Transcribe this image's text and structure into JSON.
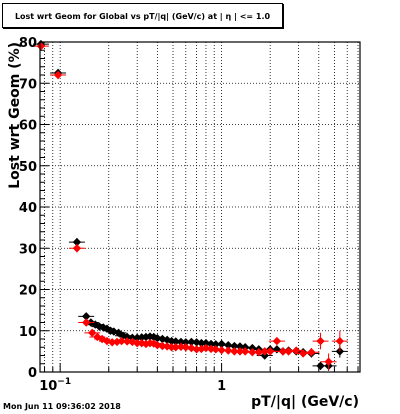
{
  "title": "Lost wrt Geom for Global vs pT/|q| (GeV/c) at | η | <= 1.0",
  "timestamp": "Mon Jun 11 09:36:02 2018",
  "colors": {
    "series_black": "#000000",
    "series_red": "#ff0000",
    "grid": "#000000"
  },
  "chart_data": {
    "type": "scatter",
    "xlabel": "pT/|q| (GeV/c)",
    "ylabel": "Lost wrt Geom (%)",
    "xscale": "log",
    "xlim": [
      0.075,
      7.2
    ],
    "ylim": [
      0,
      80
    ],
    "grid": true,
    "x_tick_labels": [
      {
        "value": 0.1,
        "base": "10",
        "exp": "−1"
      },
      {
        "value": 1,
        "base": "1",
        "exp": ""
      }
    ],
    "y_ticks": [
      0,
      10,
      20,
      30,
      40,
      50,
      60,
      70,
      80
    ],
    "series": [
      {
        "color": "#000000",
        "x": [
          0.076,
          0.097,
          0.127,
          0.145,
          0.155,
          0.165,
          0.175,
          0.185,
          0.195,
          0.205,
          0.215,
          0.23,
          0.245,
          0.26,
          0.28,
          0.3,
          0.32,
          0.34,
          0.36,
          0.38,
          0.4,
          0.43,
          0.46,
          0.49,
          0.52,
          0.56,
          0.6,
          0.65,
          0.7,
          0.75,
          0.8,
          0.86,
          0.92,
          1.0,
          1.1,
          1.2,
          1.3,
          1.4,
          1.55,
          1.7,
          1.85,
          2.0,
          2.2,
          2.4,
          2.6,
          2.9,
          3.2,
          3.6,
          4.1,
          4.6,
          5.4
        ],
        "y": [
          79.5,
          72.5,
          31.5,
          13.5,
          12.0,
          11.5,
          11.0,
          10.8,
          10.5,
          10.0,
          9.8,
          9.5,
          8.8,
          8.5,
          8.3,
          8.3,
          8.4,
          8.5,
          8.6,
          8.5,
          8.2,
          8.0,
          7.8,
          7.5,
          7.4,
          7.3,
          7.2,
          7.3,
          7.2,
          7.0,
          7.0,
          6.8,
          6.7,
          6.8,
          6.5,
          6.3,
          6.2,
          6.0,
          5.8,
          5.5,
          4.0,
          5.5,
          5.5,
          5.0,
          5.2,
          5.0,
          4.8,
          4.5,
          1.5,
          1.5,
          5.0
        ],
        "yerr": [
          0.8,
          1.0,
          1.0,
          0.6,
          0.5,
          0.5,
          0.4,
          0.4,
          0.4,
          0.4,
          0.3,
          0.3,
          0.3,
          0.3,
          0.3,
          0.3,
          0.3,
          0.3,
          0.3,
          0.3,
          0.3,
          0.3,
          0.3,
          0.3,
          0.3,
          0.3,
          0.3,
          0.3,
          0.3,
          0.3,
          0.3,
          0.3,
          0.3,
          0.3,
          0.3,
          0.3,
          0.3,
          0.3,
          0.4,
          0.4,
          0.5,
          0.5,
          0.6,
          0.6,
          0.7,
          0.8,
          0.9,
          1.0,
          1.0,
          1.2,
          1.5
        ]
      },
      {
        "color": "#ff0000",
        "x": [
          0.076,
          0.097,
          0.127,
          0.145,
          0.158,
          0.17,
          0.182,
          0.195,
          0.21,
          0.225,
          0.24,
          0.26,
          0.28,
          0.3,
          0.32,
          0.34,
          0.36,
          0.38,
          0.4,
          0.43,
          0.46,
          0.49,
          0.52,
          0.56,
          0.6,
          0.65,
          0.7,
          0.75,
          0.8,
          0.86,
          0.92,
          1.0,
          1.1,
          1.2,
          1.3,
          1.4,
          1.55,
          1.7,
          1.85,
          2.0,
          2.2,
          2.4,
          2.6,
          2.9,
          3.2,
          3.6,
          4.1,
          4.6,
          5.4
        ],
        "y": [
          79.0,
          72.0,
          30.0,
          12.0,
          9.5,
          8.5,
          8.0,
          7.5,
          7.2,
          7.3,
          7.5,
          7.4,
          7.3,
          7.0,
          7.0,
          6.8,
          7.0,
          6.9,
          6.5,
          6.3,
          6.2,
          6.0,
          6.0,
          6.1,
          6.0,
          5.8,
          5.5,
          5.6,
          5.8,
          5.6,
          5.5,
          5.3,
          5.2,
          5.0,
          5.0,
          5.0,
          4.8,
          4.8,
          5.0,
          5.0,
          7.5,
          5.0,
          5.0,
          5.2,
          4.5,
          4.8,
          7.5,
          2.5,
          7.5
        ],
        "yerr": [
          0.8,
          1.0,
          1.0,
          0.6,
          0.5,
          0.5,
          0.4,
          0.4,
          0.3,
          0.3,
          0.3,
          0.3,
          0.3,
          0.3,
          0.3,
          0.3,
          0.3,
          0.3,
          0.3,
          0.3,
          0.3,
          0.3,
          0.3,
          0.3,
          0.3,
          0.3,
          0.3,
          0.3,
          0.3,
          0.3,
          0.3,
          0.3,
          0.3,
          0.3,
          0.3,
          0.3,
          0.4,
          0.4,
          0.5,
          0.5,
          0.8,
          0.6,
          0.7,
          0.8,
          0.9,
          1.0,
          2.0,
          2.0,
          2.5
        ]
      }
    ]
  }
}
